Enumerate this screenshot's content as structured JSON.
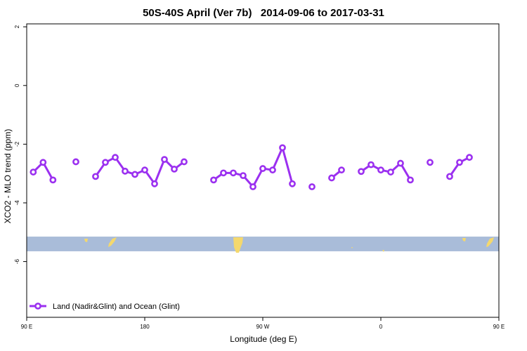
{
  "chart_data": {
    "type": "line",
    "title": "50S-40S April (Ver 7b)   2014-09-06 to 2017-03-31",
    "xlabel": "Longitude (deg E)",
    "ylabel": "XCO2 - MLO trend (ppm)",
    "xlim": [
      90,
      450
    ],
    "ylim": [
      -7.9,
      2.1
    ],
    "xticks": [
      {
        "value": 90,
        "label": "90 E"
      },
      {
        "value": 180,
        "label": "180"
      },
      {
        "value": 270,
        "label": "90 W"
      },
      {
        "value": 360,
        "label": "0"
      },
      {
        "value": 450,
        "label": "90 E"
      },
      {
        "value": 540,
        "label": "180"
      }
    ],
    "yticks": [
      {
        "value": 2,
        "label": "2"
      },
      {
        "value": 0,
        "label": "0"
      },
      {
        "value": -2,
        "label": "-2"
      },
      {
        "value": -4,
        "label": "-4"
      },
      {
        "value": -6,
        "label": "-6"
      }
    ],
    "series": [
      {
        "name": "Land (Nadir&Glint) and Ocean (Glint)",
        "color": "#9b30f0",
        "segments": [
          [
            [
              95,
              -2.95
            ],
            [
              102.5,
              -2.62
            ],
            [
              110,
              -3.22
            ]
          ],
          [
            [
              127.5,
              -2.6
            ]
          ],
          [
            [
              142.5,
              -3.1
            ],
            [
              150,
              -2.62
            ],
            [
              157.5,
              -2.45
            ],
            [
              165,
              -2.92
            ],
            [
              172.5,
              -3.03
            ],
            [
              180,
              -2.88
            ],
            [
              187.5,
              -3.35
            ],
            [
              195,
              -2.52
            ],
            [
              202.5,
              -2.85
            ],
            [
              210,
              -2.6
            ]
          ],
          [
            [
              232.5,
              -3.22
            ],
            [
              240,
              -2.98
            ],
            [
              247.5,
              -2.98
            ],
            [
              255,
              -3.07
            ],
            [
              262.5,
              -3.45
            ],
            [
              270,
              -2.83
            ],
            [
              277.5,
              -2.88
            ],
            [
              285,
              -2.12
            ],
            [
              292.5,
              -3.35
            ]
          ],
          [
            [
              307.5,
              -3.45
            ]
          ],
          [
            [
              322.5,
              -3.15
            ],
            [
              330,
              -2.88
            ]
          ],
          [
            [
              345,
              -2.93
            ],
            [
              352.5,
              -2.7
            ],
            [
              360,
              -2.88
            ],
            [
              367.5,
              -2.95
            ],
            [
              375,
              -2.65
            ],
            [
              382.5,
              -3.22
            ]
          ],
          [
            [
              397.5,
              -2.62
            ]
          ],
          [
            [
              412.5,
              -3.1
            ],
            [
              420,
              -2.62
            ],
            [
              427.5,
              -2.45
            ]
          ]
        ]
      }
    ],
    "map_band": {
      "ymin": -5.65,
      "ymax": -5.15,
      "ocean_color": "#a9bcd9",
      "land_color": "#f4d86d"
    },
    "legend_position": "bottom-left",
    "grid": false
  }
}
